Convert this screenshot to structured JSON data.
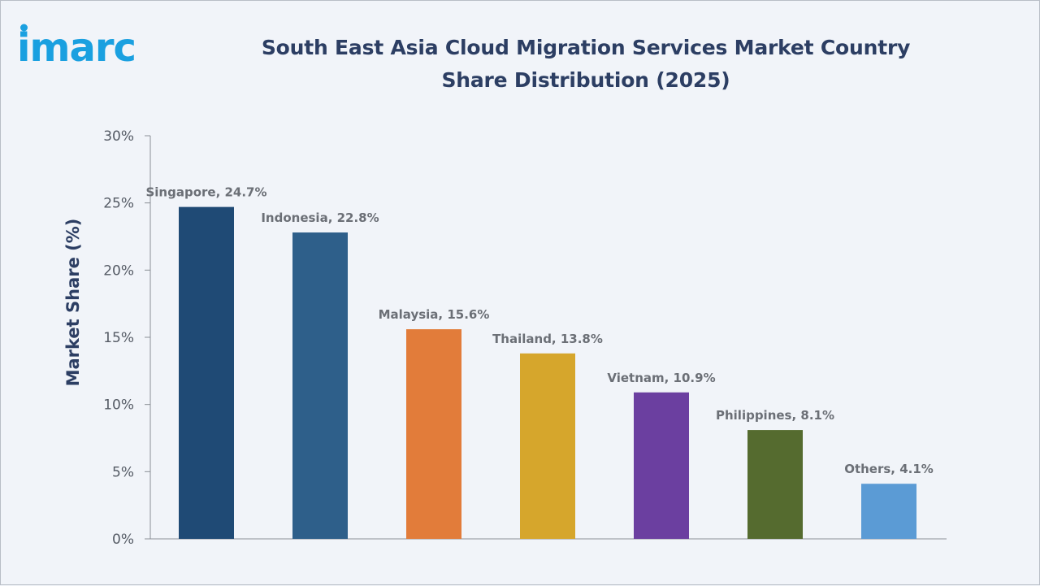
{
  "brand": {
    "logo_text": "imarc",
    "logo_color": "#1aa0e0"
  },
  "chart_data": {
    "type": "bar",
    "title": "South East Asia Cloud Migration Services Market Country Share Distribution  (2025)",
    "xlabel": "",
    "ylabel": "Market Share (%)",
    "ylim": [
      0,
      30
    ],
    "yticks": [
      "0%",
      "5%",
      "10%",
      "15%",
      "20%",
      "25%",
      "30%"
    ],
    "ytick_values": [
      0,
      5,
      10,
      15,
      20,
      25,
      30
    ],
    "grid": false,
    "categories": [
      "Singapore",
      "Indonesia",
      "Malaysia",
      "Thailand",
      "Vietnam",
      "Philippines",
      "Others"
    ],
    "values": [
      24.7,
      22.8,
      15.6,
      13.8,
      10.9,
      8.1,
      4.1
    ],
    "data_labels": [
      "Singapore, 24.7%",
      "Indonesia, 22.8%",
      "Malaysia, 15.6%",
      "Thailand, 13.8%",
      "Vietnam, 10.9%",
      "Philippines, 8.1%",
      "Others, 4.1%"
    ],
    "colors": [
      "#1f4a75",
      "#2e5f8a",
      "#e27c3a",
      "#d6a62c",
      "#6b3fa0",
      "#556b2f",
      "#5b9bd5"
    ]
  }
}
